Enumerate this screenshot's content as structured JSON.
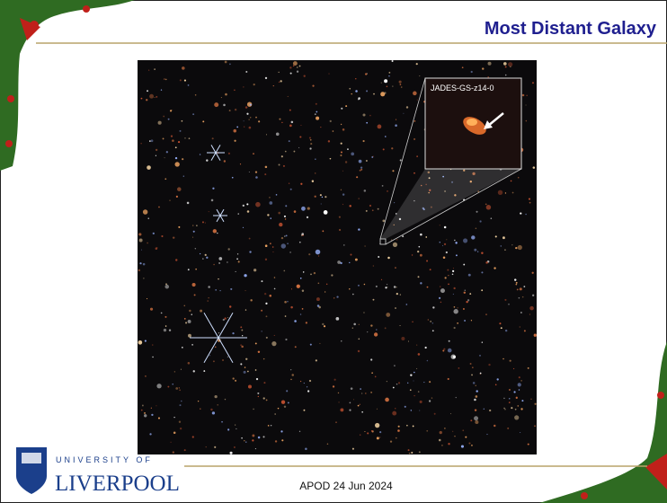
{
  "slide": {
    "title": "Most Distant Galaxy",
    "inset_label": "JADES-GS-z14-0",
    "logo": {
      "line1": "UNIVERSITY OF",
      "line2": "LIVERPOOL"
    },
    "footer": "APOD 24 Jun 2024"
  }
}
